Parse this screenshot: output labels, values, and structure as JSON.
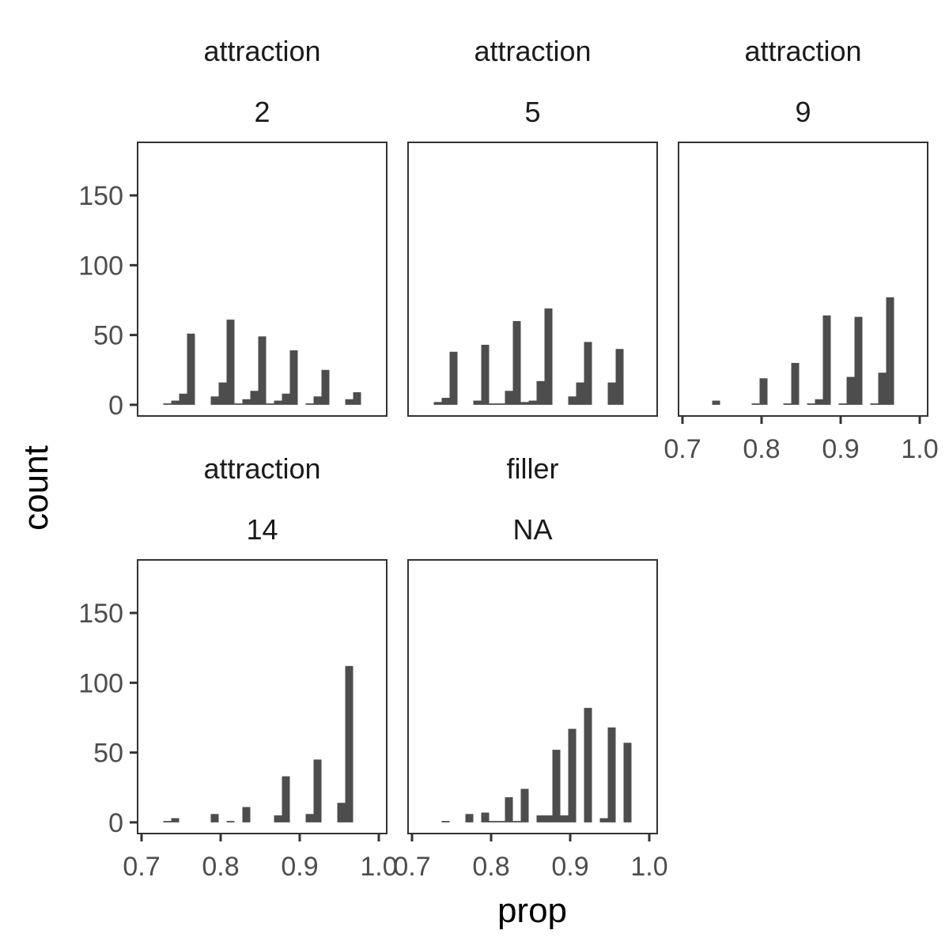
{
  "chart_data": {
    "type": "bar",
    "subtype": "faceted-histogram",
    "xlabel": "prop",
    "ylabel": "count",
    "xlim": [
      0.695,
      1.01
    ],
    "ylim": [
      -8,
      188
    ],
    "x_ticks": [
      0.7,
      0.8,
      0.9,
      1.0
    ],
    "x_tick_labels": [
      "0.7",
      "0.8",
      "0.9",
      "1.0"
    ],
    "y_ticks": [
      0,
      50,
      100,
      150
    ],
    "y_tick_labels": [
      "0",
      "50",
      "100",
      "150"
    ],
    "bar_color": "#4d4d4d",
    "grid": false,
    "facets": [
      {
        "strip_line1": "attraction",
        "strip_line2": "2",
        "bars": [
          {
            "x": 0.7325,
            "y": 1
          },
          {
            "x": 0.7425,
            "y": 3
          },
          {
            "x": 0.7525,
            "y": 8
          },
          {
            "x": 0.7625,
            "y": 51
          },
          {
            "x": 0.7925,
            "y": 6
          },
          {
            "x": 0.8025,
            "y": 16
          },
          {
            "x": 0.8125,
            "y": 61
          },
          {
            "x": 0.8225,
            "y": 1
          },
          {
            "x": 0.8325,
            "y": 4
          },
          {
            "x": 0.8425,
            "y": 10
          },
          {
            "x": 0.8525,
            "y": 49
          },
          {
            "x": 0.8625,
            "y": 1
          },
          {
            "x": 0.8725,
            "y": 3
          },
          {
            "x": 0.8825,
            "y": 8
          },
          {
            "x": 0.8925,
            "y": 39
          },
          {
            "x": 0.9125,
            "y": 1
          },
          {
            "x": 0.9225,
            "y": 6
          },
          {
            "x": 0.9325,
            "y": 25
          },
          {
            "x": 0.9625,
            "y": 4
          },
          {
            "x": 0.9725,
            "y": 9
          }
        ]
      },
      {
        "strip_line1": "attraction",
        "strip_line2": "5",
        "bars": [
          {
            "x": 0.7325,
            "y": 2
          },
          {
            "x": 0.7425,
            "y": 5
          },
          {
            "x": 0.7525,
            "y": 38
          },
          {
            "x": 0.7825,
            "y": 3
          },
          {
            "x": 0.7925,
            "y": 43
          },
          {
            "x": 0.8025,
            "y": 1
          },
          {
            "x": 0.8125,
            "y": 1
          },
          {
            "x": 0.8225,
            "y": 10
          },
          {
            "x": 0.8325,
            "y": 60
          },
          {
            "x": 0.8425,
            "y": 2
          },
          {
            "x": 0.8525,
            "y": 3
          },
          {
            "x": 0.8625,
            "y": 17
          },
          {
            "x": 0.8725,
            "y": 69
          },
          {
            "x": 0.9025,
            "y": 6
          },
          {
            "x": 0.9125,
            "y": 16
          },
          {
            "x": 0.9225,
            "y": 45
          },
          {
            "x": 0.9525,
            "y": 16
          },
          {
            "x": 0.9625,
            "y": 40
          }
        ]
      },
      {
        "strip_line1": "attraction",
        "strip_line2": "9",
        "bars": [
          {
            "x": 0.7425,
            "y": 3
          },
          {
            "x": 0.7925,
            "y": 1
          },
          {
            "x": 0.8025,
            "y": 19
          },
          {
            "x": 0.8325,
            "y": 1
          },
          {
            "x": 0.8425,
            "y": 30
          },
          {
            "x": 0.8625,
            "y": 1
          },
          {
            "x": 0.8725,
            "y": 4
          },
          {
            "x": 0.8825,
            "y": 64
          },
          {
            "x": 0.9025,
            "y": 1
          },
          {
            "x": 0.9125,
            "y": 20
          },
          {
            "x": 0.9225,
            "y": 63
          },
          {
            "x": 0.9425,
            "y": 1
          },
          {
            "x": 0.9525,
            "y": 23
          },
          {
            "x": 0.9625,
            "y": 77
          }
        ]
      },
      {
        "strip_line1": "attraction",
        "strip_line2": "14",
        "bars": [
          {
            "x": 0.7325,
            "y": 1
          },
          {
            "x": 0.7425,
            "y": 3
          },
          {
            "x": 0.7925,
            "y": 6
          },
          {
            "x": 0.8125,
            "y": 1
          },
          {
            "x": 0.8325,
            "y": 11
          },
          {
            "x": 0.8725,
            "y": 5
          },
          {
            "x": 0.8825,
            "y": 33
          },
          {
            "x": 0.9125,
            "y": 6
          },
          {
            "x": 0.9225,
            "y": 45
          },
          {
            "x": 0.9525,
            "y": 14
          },
          {
            "x": 0.9625,
            "y": 112
          }
        ]
      },
      {
        "strip_line1": "filler",
        "strip_line2": "NA",
        "bars": [
          {
            "x": 0.7425,
            "y": 1
          },
          {
            "x": 0.7725,
            "y": 6
          },
          {
            "x": 0.7925,
            "y": 7
          },
          {
            "x": 0.8025,
            "y": 1
          },
          {
            "x": 0.8125,
            "y": 1
          },
          {
            "x": 0.8225,
            "y": 18
          },
          {
            "x": 0.8325,
            "y": 1
          },
          {
            "x": 0.8425,
            "y": 24
          },
          {
            "x": 0.8625,
            "y": 5
          },
          {
            "x": 0.8725,
            "y": 5
          },
          {
            "x": 0.8825,
            "y": 52
          },
          {
            "x": 0.8925,
            "y": 5
          },
          {
            "x": 0.9025,
            "y": 67
          },
          {
            "x": 0.9225,
            "y": 82
          },
          {
            "x": 0.9425,
            "y": 3
          },
          {
            "x": 0.9525,
            "y": 68
          },
          {
            "x": 0.9725,
            "y": 57
          }
        ]
      }
    ]
  }
}
